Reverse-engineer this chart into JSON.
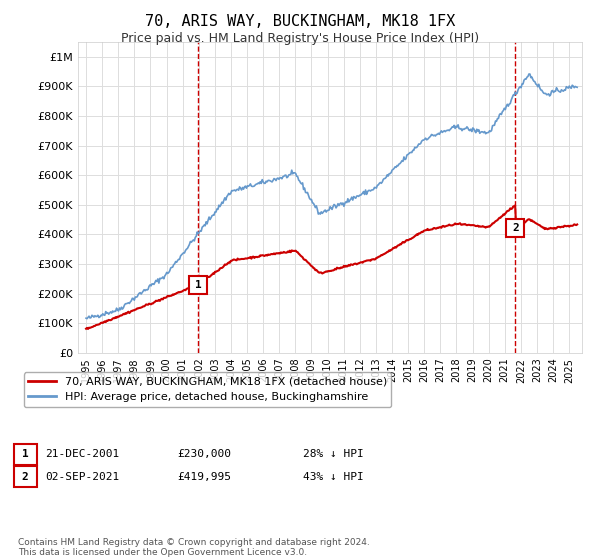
{
  "title": "70, ARIS WAY, BUCKINGHAM, MK18 1FX",
  "subtitle": "Price paid vs. HM Land Registry's House Price Index (HPI)",
  "ylim": [
    0,
    1050000
  ],
  "yticks": [
    0,
    100000,
    200000,
    300000,
    400000,
    500000,
    600000,
    700000,
    800000,
    900000,
    1000000
  ],
  "ytick_labels": [
    "£0",
    "£100K",
    "£200K",
    "£300K",
    "£400K",
    "£500K",
    "£600K",
    "£700K",
    "£800K",
    "£900K",
    "£1M"
  ],
  "sale1_date": "21-DEC-2001",
  "sale1_price": 230000,
  "sale1_year": 2001.97,
  "sale1_label": "1",
  "sale2_date": "02-SEP-2021",
  "sale2_price": 419995,
  "sale2_year": 2021.67,
  "sale2_label": "2",
  "legend_line1": "70, ARIS WAY, BUCKINGHAM, MK18 1FX (detached house)",
  "legend_line2": "HPI: Average price, detached house, Buckinghamshire",
  "footer": "Contains HM Land Registry data © Crown copyright and database right 2024.\nThis data is licensed under the Open Government Licence v3.0.",
  "red_color": "#cc0000",
  "blue_color": "#6699cc",
  "grid_color": "#dddddd",
  "background_color": "#ffffff"
}
